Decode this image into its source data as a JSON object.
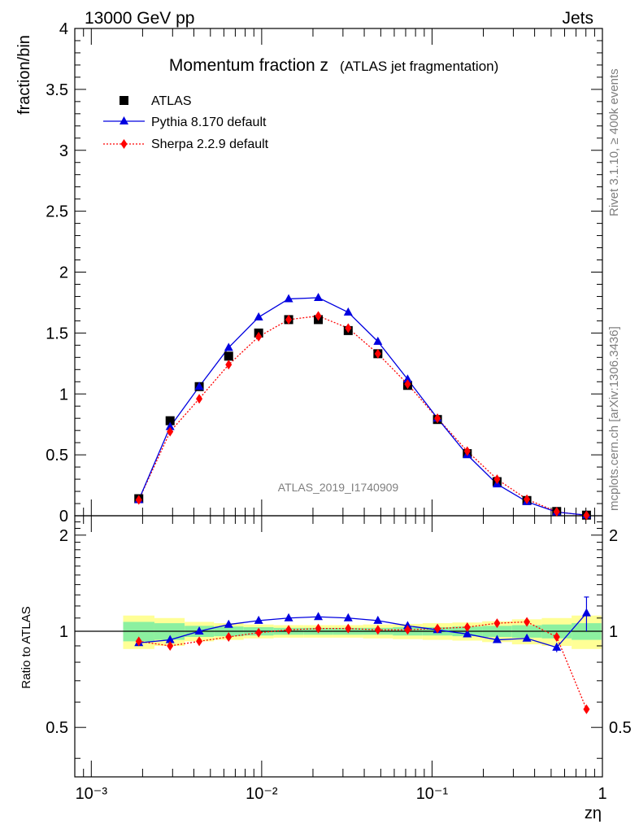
{
  "header": {
    "left": "13000 GeV pp",
    "right": "Jets"
  },
  "side": {
    "upper": "Rivet 3.1.10, ≥ 400k events",
    "lower": "mcplots.cern.ch [arXiv:1306.3436]"
  },
  "colors": {
    "atlas": "#000000",
    "pythia": "#0000e0",
    "sherpa": "#ff0000",
    "band_inner": "#8cf0a0",
    "band_outer": "#ffff96"
  },
  "chart_data": [
    {
      "type": "scatter",
      "title": "Momentum fraction z",
      "subtitle": "(ATLAS jet fragmentation)",
      "ylabel": "fraction/bin",
      "watermark": "ATLAS_2019_I1740909",
      "x_scale": "log",
      "xlim": [
        0.0008,
        1
      ],
      "ylim": [
        0,
        4
      ],
      "y_ticks": [
        "0",
        "0.5",
        "1",
        "1.5",
        "2",
        "2.5",
        "3",
        "3.5",
        "4"
      ],
      "legend_position": "top-left",
      "x": [
        0.0019,
        0.0029,
        0.0043,
        0.0064,
        0.0096,
        0.0144,
        0.0215,
        0.0322,
        0.0481,
        0.0719,
        0.1076,
        0.161,
        0.2408,
        0.3603,
        0.5391,
        0.8065
      ],
      "series": [
        {
          "name": "ATLAS",
          "values": [
            0.14,
            0.78,
            1.06,
            1.31,
            1.5,
            1.61,
            1.61,
            1.52,
            1.33,
            1.07,
            0.79,
            0.51,
            0.28,
            0.125,
            0.035,
            0.005
          ]
        },
        {
          "name": "Pythia 8.170 default",
          "values": [
            0.13,
            0.73,
            1.06,
            1.38,
            1.63,
            1.78,
            1.79,
            1.67,
            1.43,
            1.12,
            0.8,
            0.5,
            0.26,
            0.115,
            0.03,
            0.005
          ]
        },
        {
          "name": "Sherpa 2.2.9 default",
          "values": [
            0.13,
            0.69,
            0.96,
            1.24,
            1.47,
            1.61,
            1.64,
            1.54,
            1.33,
            1.08,
            0.8,
            0.53,
            0.3,
            0.135,
            0.033,
            0.003
          ]
        }
      ]
    },
    {
      "type": "line",
      "ylabel": "Ratio to ATLAS",
      "xlabel": "zη",
      "x_scale": "log",
      "xlim": [
        0.0008,
        1
      ],
      "ylim": [
        0.35,
        2.3
      ],
      "y_ticks": [
        "0.5",
        "1",
        "2"
      ],
      "x_ticks": [
        "10⁻³",
        "10⁻²",
        "10⁻¹",
        "1"
      ],
      "x": [
        0.0019,
        0.0029,
        0.0043,
        0.0064,
        0.0096,
        0.0144,
        0.0215,
        0.0322,
        0.0481,
        0.0719,
        0.1076,
        0.161,
        0.2408,
        0.3603,
        0.5391,
        0.8065
      ],
      "band_inner": [
        0.07,
        0.06,
        0.04,
        0.035,
        0.03,
        0.025,
        0.025,
        0.025,
        0.025,
        0.03,
        0.03,
        0.035,
        0.04,
        0.045,
        0.05,
        0.06
      ],
      "band_outer": [
        0.12,
        0.1,
        0.07,
        0.06,
        0.05,
        0.045,
        0.045,
        0.045,
        0.05,
        0.055,
        0.06,
        0.065,
        0.075,
        0.09,
        0.1,
        0.12
      ],
      "series": [
        {
          "name": "Pythia 8.170 default",
          "values": [
            0.92,
            0.94,
            1.0,
            1.05,
            1.08,
            1.1,
            1.11,
            1.1,
            1.08,
            1.04,
            1.01,
            0.98,
            0.94,
            0.95,
            0.89,
            1.14
          ],
          "last_err": 0.14
        },
        {
          "name": "Sherpa 2.2.9 default",
          "values": [
            0.93,
            0.9,
            0.93,
            0.96,
            0.99,
            1.01,
            1.02,
            1.02,
            1.01,
            1.01,
            1.02,
            1.03,
            1.06,
            1.07,
            0.96,
            0.57
          ]
        }
      ]
    }
  ]
}
